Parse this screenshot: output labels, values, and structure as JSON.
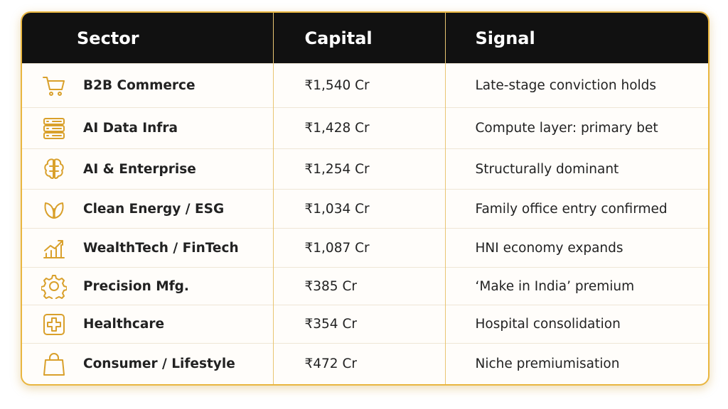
{
  "table": {
    "header": [
      "Sector",
      "Capital",
      "Signal"
    ],
    "rows": [
      [
        "B2B Commerce",
        "₹1,540 Cr",
        "Late-stage conviction holds"
      ],
      [
        "AI Data Infra",
        "₹1,428 Cr",
        "Compute layer: primary bet"
      ],
      [
        "AI & Enterprise",
        "₹1,254 Cr",
        "Structurally dominant"
      ],
      [
        "Clean Energy / ESG",
        "₹1,034 Cr",
        "Family office entry confirmed"
      ],
      [
        "WealthTech / FinTech",
        "₹1,087 Cr",
        "HNI economy expands"
      ],
      [
        "Precision Mfg.",
        "₹385 Cr",
        "‘Make in India’ premium"
      ],
      [
        "Healthcare",
        "₹354 Cr",
        "Hospital consolidation"
      ],
      [
        "Consumer / Lifestyle",
        "₹472 Cr",
        "Niche premiumisation"
      ]
    ]
  }
}
